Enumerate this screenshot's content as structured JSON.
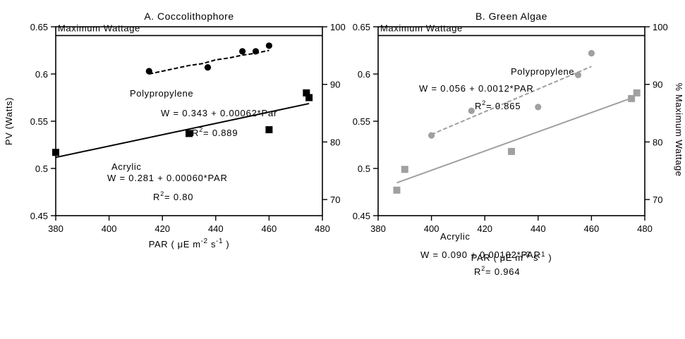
{
  "chart_data": [
    {
      "type": "scatter",
      "title": "A.   Coccolithophore",
      "xlabel": "PAR ( μE m⁻² s⁻¹ )",
      "ylabel": "PV  (Watts)",
      "y2label": "% Maximum Wattage",
      "xlim": [
        380,
        480
      ],
      "ylim": [
        0.45,
        0.65
      ],
      "y2lim": [
        67.2,
        100
      ],
      "xticks": [
        "380",
        "400",
        "420",
        "440",
        "460",
        "480"
      ],
      "yticks": [
        "0.45",
        "0.5",
        "0.55",
        "0.6",
        "0.65"
      ],
      "y2ticks": [
        "70",
        "80",
        "90",
        "100"
      ],
      "reference_line": {
        "label": "Maximum     Wattage",
        "y": 0.6407
      },
      "grid": false,
      "series": [
        {
          "name": "Polypropylene",
          "marker": "circle",
          "color": "#000000",
          "points": [
            [
              415,
              0.603
            ],
            [
              437,
              0.607
            ],
            [
              450,
              0.624
            ],
            [
              455,
              0.624
            ],
            [
              460,
              0.63
            ]
          ],
          "trend": {
            "style": "dashed",
            "x": [
              415,
              420,
              425,
              430,
              435,
              440,
              445,
              450,
              455,
              460
            ],
            "y": [
              0.6,
              0.603,
              0.606,
              0.609,
              0.611,
              0.615,
              0.617,
              0.62,
              0.622,
              0.625
            ]
          },
          "equation": "W  =  0.343  +  0.00062*Par",
          "r2_prefix": "R",
          "r2_sup": "2",
          "r2_value": "=   0.889"
        },
        {
          "name": "Acrylic",
          "marker": "square",
          "color": "#000000",
          "points": [
            [
              380,
              0.517
            ],
            [
              430,
              0.537
            ],
            [
              460,
              0.541
            ],
            [
              474,
              0.58
            ],
            [
              475,
              0.575
            ]
          ],
          "trend": {
            "style": "solid",
            "x": [
              380,
              475
            ],
            "y": [
              0.5117,
              0.5687
            ]
          },
          "equation": "W  =  0.281  +  0.00060*PAR",
          "r2_prefix": "R",
          "r2_sup": "2",
          "r2_value": "=   0.80"
        }
      ]
    },
    {
      "type": "scatter",
      "title": "B.   Green   Algae",
      "xlabel": "PAR ( μE m⁻² s⁻¹ )",
      "ylabel": "PV  (Watts)",
      "y2label": "%   Maximum   Wattage",
      "xlim": [
        380,
        480
      ],
      "ylim": [
        0.45,
        0.65
      ],
      "y2lim": [
        67.2,
        100
      ],
      "xticks": [
        "380",
        "400",
        "420",
        "440",
        "460",
        "480"
      ],
      "yticks": [
        "0.45",
        "0.5",
        "0.55",
        "0.6",
        "0.65"
      ],
      "y2ticks": [
        "70",
        "80",
        "90",
        "100"
      ],
      "reference_line": {
        "label": "Maximum     Wattage",
        "y": 0.6407
      },
      "grid": false,
      "series": [
        {
          "name": "Polypropylene",
          "marker": "circle",
          "color": "#a0a0a0",
          "points": [
            [
              400,
              0.535
            ],
            [
              415,
              0.561
            ],
            [
              440,
              0.565
            ],
            [
              455,
              0.599
            ],
            [
              460,
              0.622
            ]
          ],
          "trend": {
            "style": "dashed",
            "x": [
              400,
              460
            ],
            "y": [
              0.536,
              0.608
            ]
          },
          "equation": "W  =  0.056  +  0.0012*PAR",
          "r2_prefix": "R",
          "r2_sup": "2",
          "r2_value": "=   0.865"
        },
        {
          "name": "Acrylic",
          "marker": "square",
          "color": "#a0a0a0",
          "points": [
            [
              387,
              0.477
            ],
            [
              390,
              0.499
            ],
            [
              430,
              0.518
            ],
            [
              475,
              0.574
            ],
            [
              477,
              0.58
            ]
          ],
          "trend": {
            "style": "solid",
            "x": [
              387,
              475
            ],
            "y": [
              0.4848,
              0.5745
            ]
          },
          "equation": "W  =  0.090  +  0.00102*PAR",
          "r2_prefix": "R",
          "r2_sup": "2",
          "r2_value": "=   0.964"
        }
      ]
    }
  ]
}
